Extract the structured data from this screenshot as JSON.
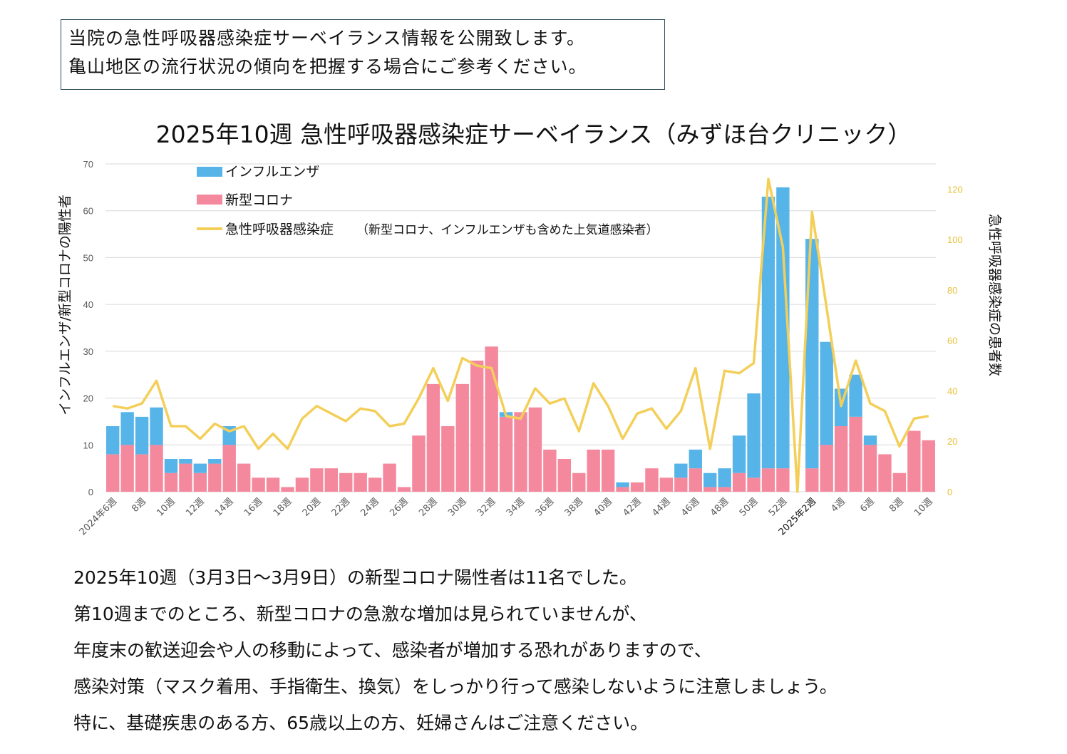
{
  "notice": {
    "line1": "当院の急性呼吸器感染症サーベイランス情報を公開致します。",
    "line2": "亀山地区の流行状況の傾向を把握する場合にご参考ください。"
  },
  "chart_data": {
    "type": "bar",
    "title": "2025年10週 急性呼吸器感染症サーベイランス（みずほ台クリニック）",
    "ylabel_left": "インフルエンザ/新型コロナの陽性者",
    "ylabel_right": "急性呼吸器感染症の患者数",
    "ylim_left": [
      0,
      70
    ],
    "ylim_right": [
      0,
      130
    ],
    "yticks_left": [
      0,
      10,
      20,
      30,
      40,
      50,
      60,
      70
    ],
    "yticks_right": [
      0,
      20,
      40,
      60,
      80,
      100,
      120
    ],
    "stacked": true,
    "grid": true,
    "legend": {
      "influenza": "インフルエンザ",
      "covid": "新型コロナ",
      "ari": "急性呼吸器感染症",
      "ari_note": "（新型コロナ、インフルエンザも含めた上気道感染者）"
    },
    "tick_labels": [
      "2024年6週",
      "8週",
      "10週",
      "12週",
      "14週",
      "16週",
      "18週",
      "20週",
      "22週",
      "24週",
      "26週",
      "28週",
      "30週",
      "32週",
      "34週",
      "36週",
      "38週",
      "40週",
      "42週",
      "44週",
      "46週",
      "48週",
      "50週",
      "52週",
      "2025年2週",
      "4週",
      "6週",
      "8週",
      "10週"
    ],
    "series": [
      {
        "name": "新型コロナ",
        "color": "#f4899e",
        "values": [
          8,
          10,
          8,
          10,
          4,
          6,
          4,
          6,
          10,
          6,
          3,
          3,
          1,
          3,
          5,
          5,
          4,
          4,
          3,
          6,
          1,
          12,
          23,
          14,
          23,
          28,
          31,
          16,
          17,
          18,
          9,
          7,
          4,
          9,
          9,
          1,
          2,
          5,
          3,
          3,
          5,
          1,
          1,
          4,
          3,
          5,
          5,
          0,
          5,
          10,
          14,
          16,
          10,
          8,
          4,
          13,
          11
        ]
      },
      {
        "name": "インフルエンザ",
        "color": "#56b4e9",
        "values": [
          6,
          7,
          8,
          8,
          3,
          1,
          2,
          1,
          4,
          0,
          0,
          0,
          0,
          0,
          0,
          0,
          0,
          0,
          0,
          0,
          0,
          0,
          0,
          0,
          0,
          0,
          0,
          1,
          0,
          0,
          0,
          0,
          0,
          0,
          0,
          1,
          0,
          0,
          0,
          3,
          4,
          3,
          4,
          8,
          18,
          58,
          60,
          0,
          49,
          22,
          8,
          9,
          2,
          0,
          0,
          0,
          0
        ]
      },
      {
        "name": "急性呼吸器感染症",
        "color": "#f3cf5a",
        "axis": "right",
        "values": [
          34,
          33,
          35,
          44,
          26,
          26,
          21,
          27,
          24,
          26,
          17,
          23,
          17,
          29,
          34,
          31,
          28,
          33,
          32,
          26,
          27,
          37,
          49,
          36,
          53,
          50,
          49,
          30,
          29,
          41,
          35,
          37,
          24,
          43,
          34,
          21,
          31,
          33,
          25,
          32,
          49,
          17,
          48,
          47,
          51,
          124,
          97,
          0,
          111,
          73,
          34,
          52,
          35,
          32,
          18,
          29,
          30
        ]
      }
    ]
  },
  "body": {
    "line1": "2025年10週（3月3日～3月9日）の新型コロナ陽性者は11名でした。",
    "line2": "第10週までのところ、新型コロナの急激な増加は見られていませんが、",
    "line3": "年度末の歓送迎会や人の移動によって、感染者が増加する恐れがありますので、",
    "line4": "感染対策（マスク着用、手指衛生、換気）をしっかり行って感染しないように注意しましょう。",
    "line5": "特に、基礎疾患のある方、65歳以上の方、妊婦さんはご注意ください。"
  }
}
